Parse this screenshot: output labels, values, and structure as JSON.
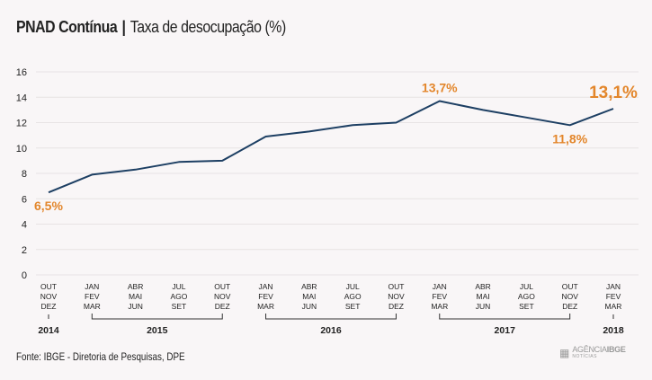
{
  "header": {
    "title": "PNAD Contínua",
    "separator": "|",
    "subtitle": "Taxa de desocupação (%)"
  },
  "footer": {
    "source": "Fonte: IBGE - Diretoria de Pesquisas, DPE",
    "logo_name": "AGÊNCIA",
    "logo_name_bold": "IBGE",
    "logo_small": "NOTÍCIAS"
  },
  "colors": {
    "line": "#1d3f63",
    "highlight": "#e3862b",
    "grid": "#e8e3e4",
    "axis_text": "#222222"
  },
  "chart_data": {
    "type": "line",
    "title": "PNAD Contínua | Taxa de desocupação (%)",
    "xlabel": "",
    "ylabel": "",
    "ylim": [
      0,
      16
    ],
    "yticks": [
      0,
      2,
      4,
      6,
      8,
      10,
      12,
      14,
      16
    ],
    "grid": true,
    "categories": [
      [
        "OUT",
        "NOV",
        "DEZ"
      ],
      [
        "JAN",
        "FEV",
        "MAR"
      ],
      [
        "ABR",
        "MAI",
        "JUN"
      ],
      [
        "JUL",
        "AGO",
        "SET"
      ],
      [
        "OUT",
        "NOV",
        "DEZ"
      ],
      [
        "JAN",
        "FEV",
        "MAR"
      ],
      [
        "ABR",
        "MAI",
        "JUN"
      ],
      [
        "JUL",
        "AGO",
        "SET"
      ],
      [
        "OUT",
        "NOV",
        "DEZ"
      ],
      [
        "JAN",
        "FEV",
        "MAR"
      ],
      [
        "ABR",
        "MAI",
        "JUN"
      ],
      [
        "JUL",
        "AGO",
        "SET"
      ],
      [
        "OUT",
        "NOV",
        "DEZ"
      ],
      [
        "JAN",
        "FEV",
        "MAR"
      ]
    ],
    "series": [
      {
        "name": "Taxa de desocupação (%)",
        "values": [
          6.5,
          7.9,
          8.3,
          8.9,
          9.0,
          10.9,
          11.3,
          11.8,
          12.0,
          13.7,
          13.0,
          12.4,
          11.8,
          13.1
        ]
      }
    ],
    "annotations": [
      {
        "index": 0,
        "text": "6,5%",
        "position": "below"
      },
      {
        "index": 9,
        "text": "13,7%",
        "position": "above"
      },
      {
        "index": 12,
        "text": "11,8%",
        "position": "below"
      },
      {
        "index": 13,
        "text": "13,1%",
        "position": "above",
        "emphasis": true
      }
    ],
    "year_groups": [
      {
        "label": "2014",
        "start": 0,
        "end": 0
      },
      {
        "label": "2015",
        "start": 1,
        "end": 4
      },
      {
        "label": "2016",
        "start": 5,
        "end": 8
      },
      {
        "label": "2017",
        "start": 9,
        "end": 12
      },
      {
        "label": "2018",
        "start": 13,
        "end": 13
      }
    ]
  }
}
